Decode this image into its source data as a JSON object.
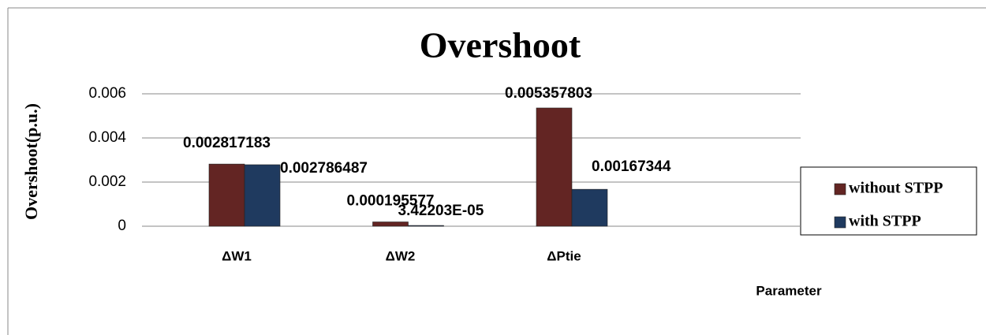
{
  "chart_data": {
    "type": "bar",
    "title": "Overshoot",
    "y_label": "Overshoot(p.u.)",
    "x_label": "Parameter",
    "categories": [
      "ΔW1",
      "ΔW2",
      "ΔPtie"
    ],
    "series": [
      {
        "name": "without STPP",
        "color": "#632523",
        "values": [
          0.002817183,
          0.000195577,
          0.005357803
        ],
        "value_labels": [
          "0.002817183",
          "0.000195577",
          "0.005357803"
        ]
      },
      {
        "name": "with STPP",
        "color": "#1f3a5f",
        "values": [
          0.002786487,
          3.42203e-05,
          0.00167344
        ],
        "value_labels": [
          "0.002786487",
          "3.42203E-05",
          "0.00167344"
        ]
      }
    ],
    "ylim": [
      0,
      0.006
    ],
    "yticks": [
      0,
      0.002,
      0.004,
      0.006
    ],
    "grid": true,
    "legend": "right"
  }
}
